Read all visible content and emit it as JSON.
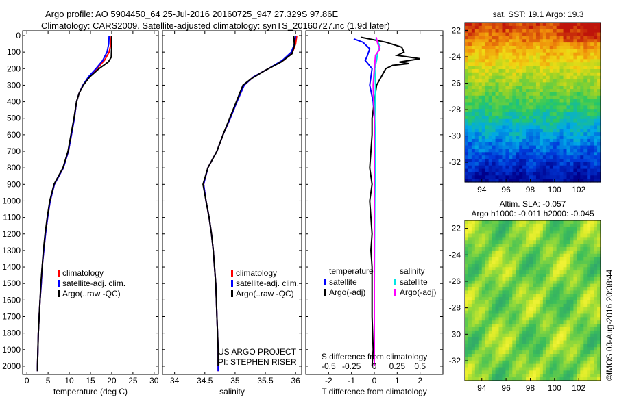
{
  "header": {
    "title_line1": "Argo profile: AO 5904450_64 25-Jul-2016 20160725_947 27.329S 97.86E",
    "title_line2": "Climatology: CARS2009. Satellite-adjusted climatology: synTS_20160727.nc (1.9d later)"
  },
  "footer": {
    "credit": "©IMOS 03-Aug-2016 20:38:44"
  },
  "colors": {
    "climatology": "#ff0000",
    "satellite": "#0000ff",
    "argo": "#000000",
    "salinity_satellite": "#00e5e5",
    "salinity_argo": "#ff00ff"
  },
  "chart_data": [
    {
      "id": "temperature",
      "type": "line",
      "xlabel": "temperature (deg C)",
      "xlim": [
        -1,
        31
      ],
      "xticks": [
        "0",
        "5",
        "10",
        "15",
        "20",
        "25",
        "30"
      ],
      "ylim": [
        2050,
        0
      ],
      "yticks": [
        "0",
        "100",
        "200",
        "300",
        "400",
        "500",
        "600",
        "700",
        "800",
        "900",
        "1000",
        "1100",
        "1200",
        "1300",
        "1400",
        "1500",
        "1600",
        "1700",
        "1800",
        "1900",
        "2000"
      ],
      "legend": [
        "climatology",
        "satellite-adj. clim.",
        "Argo(..raw -QC)"
      ],
      "series": [
        {
          "name": "climatology",
          "color": "#ff0000",
          "points": [
            [
              19.9,
              0
            ],
            [
              19.8,
              50
            ],
            [
              19.4,
              100
            ],
            [
              18.3,
              150
            ],
            [
              16.5,
              200
            ],
            [
              14.6,
              250
            ],
            [
              13.2,
              300
            ],
            [
              12.3,
              350
            ],
            [
              11.7,
              400
            ],
            [
              11.2,
              500
            ],
            [
              10.5,
              600
            ],
            [
              9.8,
              700
            ],
            [
              8.6,
              800
            ],
            [
              6.5,
              900
            ],
            [
              5.5,
              1000
            ],
            [
              4.9,
              1100
            ],
            [
              4.4,
              1200
            ],
            [
              4.0,
              1300
            ],
            [
              3.6,
              1400
            ],
            [
              3.4,
              1500
            ],
            [
              3.1,
              1600
            ],
            [
              2.9,
              1700
            ],
            [
              2.7,
              1800
            ],
            [
              2.6,
              1900
            ],
            [
              2.5,
              2000
            ],
            [
              2.5,
              2030
            ]
          ]
        },
        {
          "name": "satellite-adj. clim.",
          "color": "#0000ff",
          "points": [
            [
              19.4,
              0
            ],
            [
              19.3,
              50
            ],
            [
              18.9,
              100
            ],
            [
              17.9,
              150
            ],
            [
              16.3,
              200
            ],
            [
              14.5,
              250
            ],
            [
              13.2,
              300
            ],
            [
              12.3,
              350
            ],
            [
              11.7,
              400
            ],
            [
              11.2,
              500
            ],
            [
              10.5,
              600
            ],
            [
              9.8,
              700
            ],
            [
              8.6,
              800
            ],
            [
              6.5,
              900
            ],
            [
              5.5,
              1000
            ],
            [
              4.9,
              1100
            ],
            [
              4.4,
              1200
            ],
            [
              4.0,
              1300
            ],
            [
              3.6,
              1400
            ],
            [
              3.4,
              1500
            ],
            [
              3.1,
              1600
            ],
            [
              2.9,
              1700
            ],
            [
              2.7,
              1800
            ],
            [
              2.6,
              1900
            ],
            [
              2.5,
              2000
            ],
            [
              2.5,
              2030
            ]
          ]
        },
        {
          "name": "Argo(..raw -QC)",
          "color": "#000000",
          "points": [
            [
              20.0,
              0
            ],
            [
              20.0,
              60
            ],
            [
              19.9,
              130
            ],
            [
              19.2,
              160
            ],
            [
              17.0,
              200
            ],
            [
              14.8,
              250
            ],
            [
              13.3,
              300
            ],
            [
              12.3,
              350
            ],
            [
              11.7,
              400
            ],
            [
              11.1,
              500
            ],
            [
              10.4,
              600
            ],
            [
              9.7,
              700
            ],
            [
              8.5,
              800
            ],
            [
              6.4,
              900
            ],
            [
              5.4,
              1000
            ],
            [
              4.8,
              1100
            ],
            [
              4.3,
              1200
            ],
            [
              3.9,
              1300
            ],
            [
              3.6,
              1400
            ],
            [
              3.3,
              1500
            ],
            [
              3.1,
              1600
            ],
            [
              2.9,
              1700
            ],
            [
              2.7,
              1800
            ],
            [
              2.6,
              1900
            ],
            [
              2.5,
              2000
            ],
            [
              2.5,
              2030
            ]
          ]
        }
      ]
    },
    {
      "id": "salinity",
      "type": "line",
      "xlabel": "salinity",
      "xlim": [
        33.8,
        36.1
      ],
      "xticks": [
        "34",
        "34.5",
        "35",
        "35.5",
        "36"
      ],
      "ylim": [
        2050,
        0
      ],
      "legend": [
        "climatology",
        "satellite-adj. clim.",
        "Argo(..raw -QC)"
      ],
      "annotation": [
        "US ARGO PROJECT",
        "PI: STEPHEN RISER"
      ],
      "series": [
        {
          "name": "climatology",
          "color": "#ff0000",
          "points": [
            [
              36.02,
              0
            ],
            [
              36.0,
              50
            ],
            [
              35.95,
              100
            ],
            [
              35.8,
              150
            ],
            [
              35.55,
              200
            ],
            [
              35.3,
              250
            ],
            [
              35.15,
              300
            ],
            [
              35.03,
              400
            ],
            [
              34.92,
              500
            ],
            [
              34.8,
              600
            ],
            [
              34.7,
              700
            ],
            [
              34.55,
              800
            ],
            [
              34.48,
              900
            ],
            [
              34.52,
              1000
            ],
            [
              34.57,
              1100
            ],
            [
              34.61,
              1200
            ],
            [
              34.64,
              1300
            ],
            [
              34.66,
              1400
            ],
            [
              34.68,
              1500
            ],
            [
              34.69,
              1600
            ],
            [
              34.7,
              1700
            ],
            [
              34.71,
              1800
            ],
            [
              34.72,
              1900
            ],
            [
              34.72,
              2000
            ],
            [
              34.72,
              2030
            ]
          ]
        },
        {
          "name": "satellite-adj. clim.",
          "color": "#0000ff",
          "points": [
            [
              36.0,
              0
            ],
            [
              35.98,
              50
            ],
            [
              35.93,
              100
            ],
            [
              35.78,
              150
            ],
            [
              35.55,
              200
            ],
            [
              35.3,
              250
            ],
            [
              35.15,
              300
            ],
            [
              35.03,
              400
            ],
            [
              34.92,
              500
            ],
            [
              34.8,
              600
            ],
            [
              34.7,
              700
            ],
            [
              34.55,
              800
            ],
            [
              34.48,
              900
            ],
            [
              34.52,
              1000
            ],
            [
              34.57,
              1100
            ],
            [
              34.61,
              1200
            ],
            [
              34.64,
              1300
            ],
            [
              34.66,
              1400
            ],
            [
              34.68,
              1500
            ],
            [
              34.69,
              1600
            ],
            [
              34.7,
              1700
            ],
            [
              34.71,
              1800
            ],
            [
              34.72,
              1900
            ],
            [
              34.72,
              2000
            ],
            [
              34.72,
              2030
            ]
          ]
        },
        {
          "name": "Argo(..raw -QC)",
          "color": "#000000",
          "points": [
            [
              35.97,
              0
            ],
            [
              35.98,
              60
            ],
            [
              35.94,
              110
            ],
            [
              35.76,
              160
            ],
            [
              35.5,
              210
            ],
            [
              35.27,
              260
            ],
            [
              35.13,
              300
            ],
            [
              35.02,
              400
            ],
            [
              34.91,
              500
            ],
            [
              34.8,
              600
            ],
            [
              34.7,
              700
            ],
            [
              34.55,
              800
            ],
            [
              34.47,
              900
            ],
            [
              34.52,
              1000
            ],
            [
              34.57,
              1100
            ],
            [
              34.61,
              1200
            ],
            [
              34.64,
              1300
            ],
            [
              34.66,
              1400
            ],
            [
              34.68,
              1500
            ],
            [
              34.69,
              1600
            ],
            [
              34.7,
              1700
            ],
            [
              34.71,
              1800
            ],
            [
              34.72,
              1900
            ],
            [
              34.72,
              2000
            ]
          ]
        }
      ]
    },
    {
      "id": "difference",
      "type": "line",
      "xlabel": "T difference from climatology",
      "xlabel_top": "S difference from climatology",
      "xlim": [
        -3,
        3
      ],
      "xticks": [
        "-2",
        "-1",
        "0",
        "1",
        "2"
      ],
      "xticks_top": [
        "-0.5",
        "-0.25",
        "0",
        "0.25",
        "0.5"
      ],
      "ylim": [
        2050,
        0
      ],
      "legend_temperature_title": "temperature",
      "legend_salinity_title": "salinity",
      "legend_temperature": [
        "satellite",
        "Argo(-adj)"
      ],
      "legend_salinity": [
        "satellite",
        "Argo(-adj)"
      ],
      "series": [
        {
          "name": "temperature satellite",
          "color": "#0000ff",
          "points": [
            [
              -0.9,
              20
            ],
            [
              -0.5,
              40
            ],
            [
              -0.2,
              80
            ],
            [
              -0.3,
              120
            ],
            [
              -0.4,
              150
            ],
            [
              -0.1,
              200
            ],
            [
              -0.2,
              300
            ],
            [
              -0.05,
              400
            ],
            [
              0,
              500
            ],
            [
              0,
              700
            ],
            [
              0,
              1000
            ],
            [
              0,
              1500
            ],
            [
              0,
              2000
            ]
          ]
        },
        {
          "name": "temperature Argo(-adj)",
          "color": "#000000",
          "points": [
            [
              -0.6,
              10
            ],
            [
              0.5,
              40
            ],
            [
              1.2,
              70
            ],
            [
              1.3,
              100
            ],
            [
              1.0,
              120
            ],
            [
              2.0,
              140
            ],
            [
              1.1,
              160
            ],
            [
              1.5,
              170
            ],
            [
              0.8,
              180
            ],
            [
              0.5,
              200
            ],
            [
              0.3,
              250
            ],
            [
              0.1,
              300
            ],
            [
              0.0,
              400
            ],
            [
              -0.1,
              500
            ],
            [
              -0.1,
              600
            ],
            [
              -0.15,
              700
            ],
            [
              -0.2,
              800
            ],
            [
              -0.1,
              900
            ],
            [
              -0.2,
              1000
            ],
            [
              -0.15,
              1100
            ],
            [
              -0.1,
              1200
            ],
            [
              -0.15,
              1300
            ],
            [
              -0.1,
              1400
            ],
            [
              -0.1,
              1500
            ],
            [
              -0.1,
              1700
            ],
            [
              -0.05,
              1900
            ],
            [
              -0.1,
              2000
            ]
          ]
        },
        {
          "name": "salinity satellite",
          "color": "#00e5e5",
          "points": [
            [
              0.05,
              20
            ],
            [
              0.25,
              60
            ],
            [
              0.15,
              100
            ],
            [
              0.1,
              150
            ],
            [
              0.02,
              200
            ],
            [
              0.05,
              300
            ],
            [
              0.02,
              500
            ],
            [
              0.05,
              700
            ],
            [
              0.02,
              1000
            ],
            [
              0.0,
              1500
            ],
            [
              0.0,
              2000
            ]
          ]
        },
        {
          "name": "salinity Argo(-adj)",
          "color": "#ff00ff",
          "points": [
            [
              0.08,
              10
            ],
            [
              0.15,
              50
            ],
            [
              0.25,
              80
            ],
            [
              0.05,
              120
            ],
            [
              0.0,
              200
            ],
            [
              -0.05,
              300
            ],
            [
              -0.03,
              400
            ],
            [
              0.0,
              500
            ],
            [
              0.0,
              1000
            ],
            [
              0.0,
              2000
            ]
          ]
        }
      ]
    },
    {
      "id": "sst_map",
      "type": "heatmap",
      "title": "sat. SST: 19.1  Argo: 19.3",
      "xticks": [
        "94",
        "96",
        "98",
        "100",
        "102"
      ],
      "yticks": [
        "-22",
        "-24",
        "-26",
        "-28",
        "-30",
        "-32"
      ],
      "xlim": [
        92.6,
        103.8
      ],
      "ylim": [
        -33.5,
        -21.4
      ]
    },
    {
      "id": "sla_map",
      "type": "heatmap",
      "title_line1": "Altim. SLA: -0.057",
      "title_line2": "Argo h1000: -0.011  h2000: -0.045",
      "xticks": [
        "94",
        "96",
        "98",
        "100",
        "102"
      ],
      "yticks": [
        "-22",
        "-24",
        "-26",
        "-28",
        "-30",
        "-32"
      ],
      "xlim": [
        92.6,
        103.8
      ],
      "ylim": [
        -33.5,
        -21.4
      ]
    }
  ]
}
